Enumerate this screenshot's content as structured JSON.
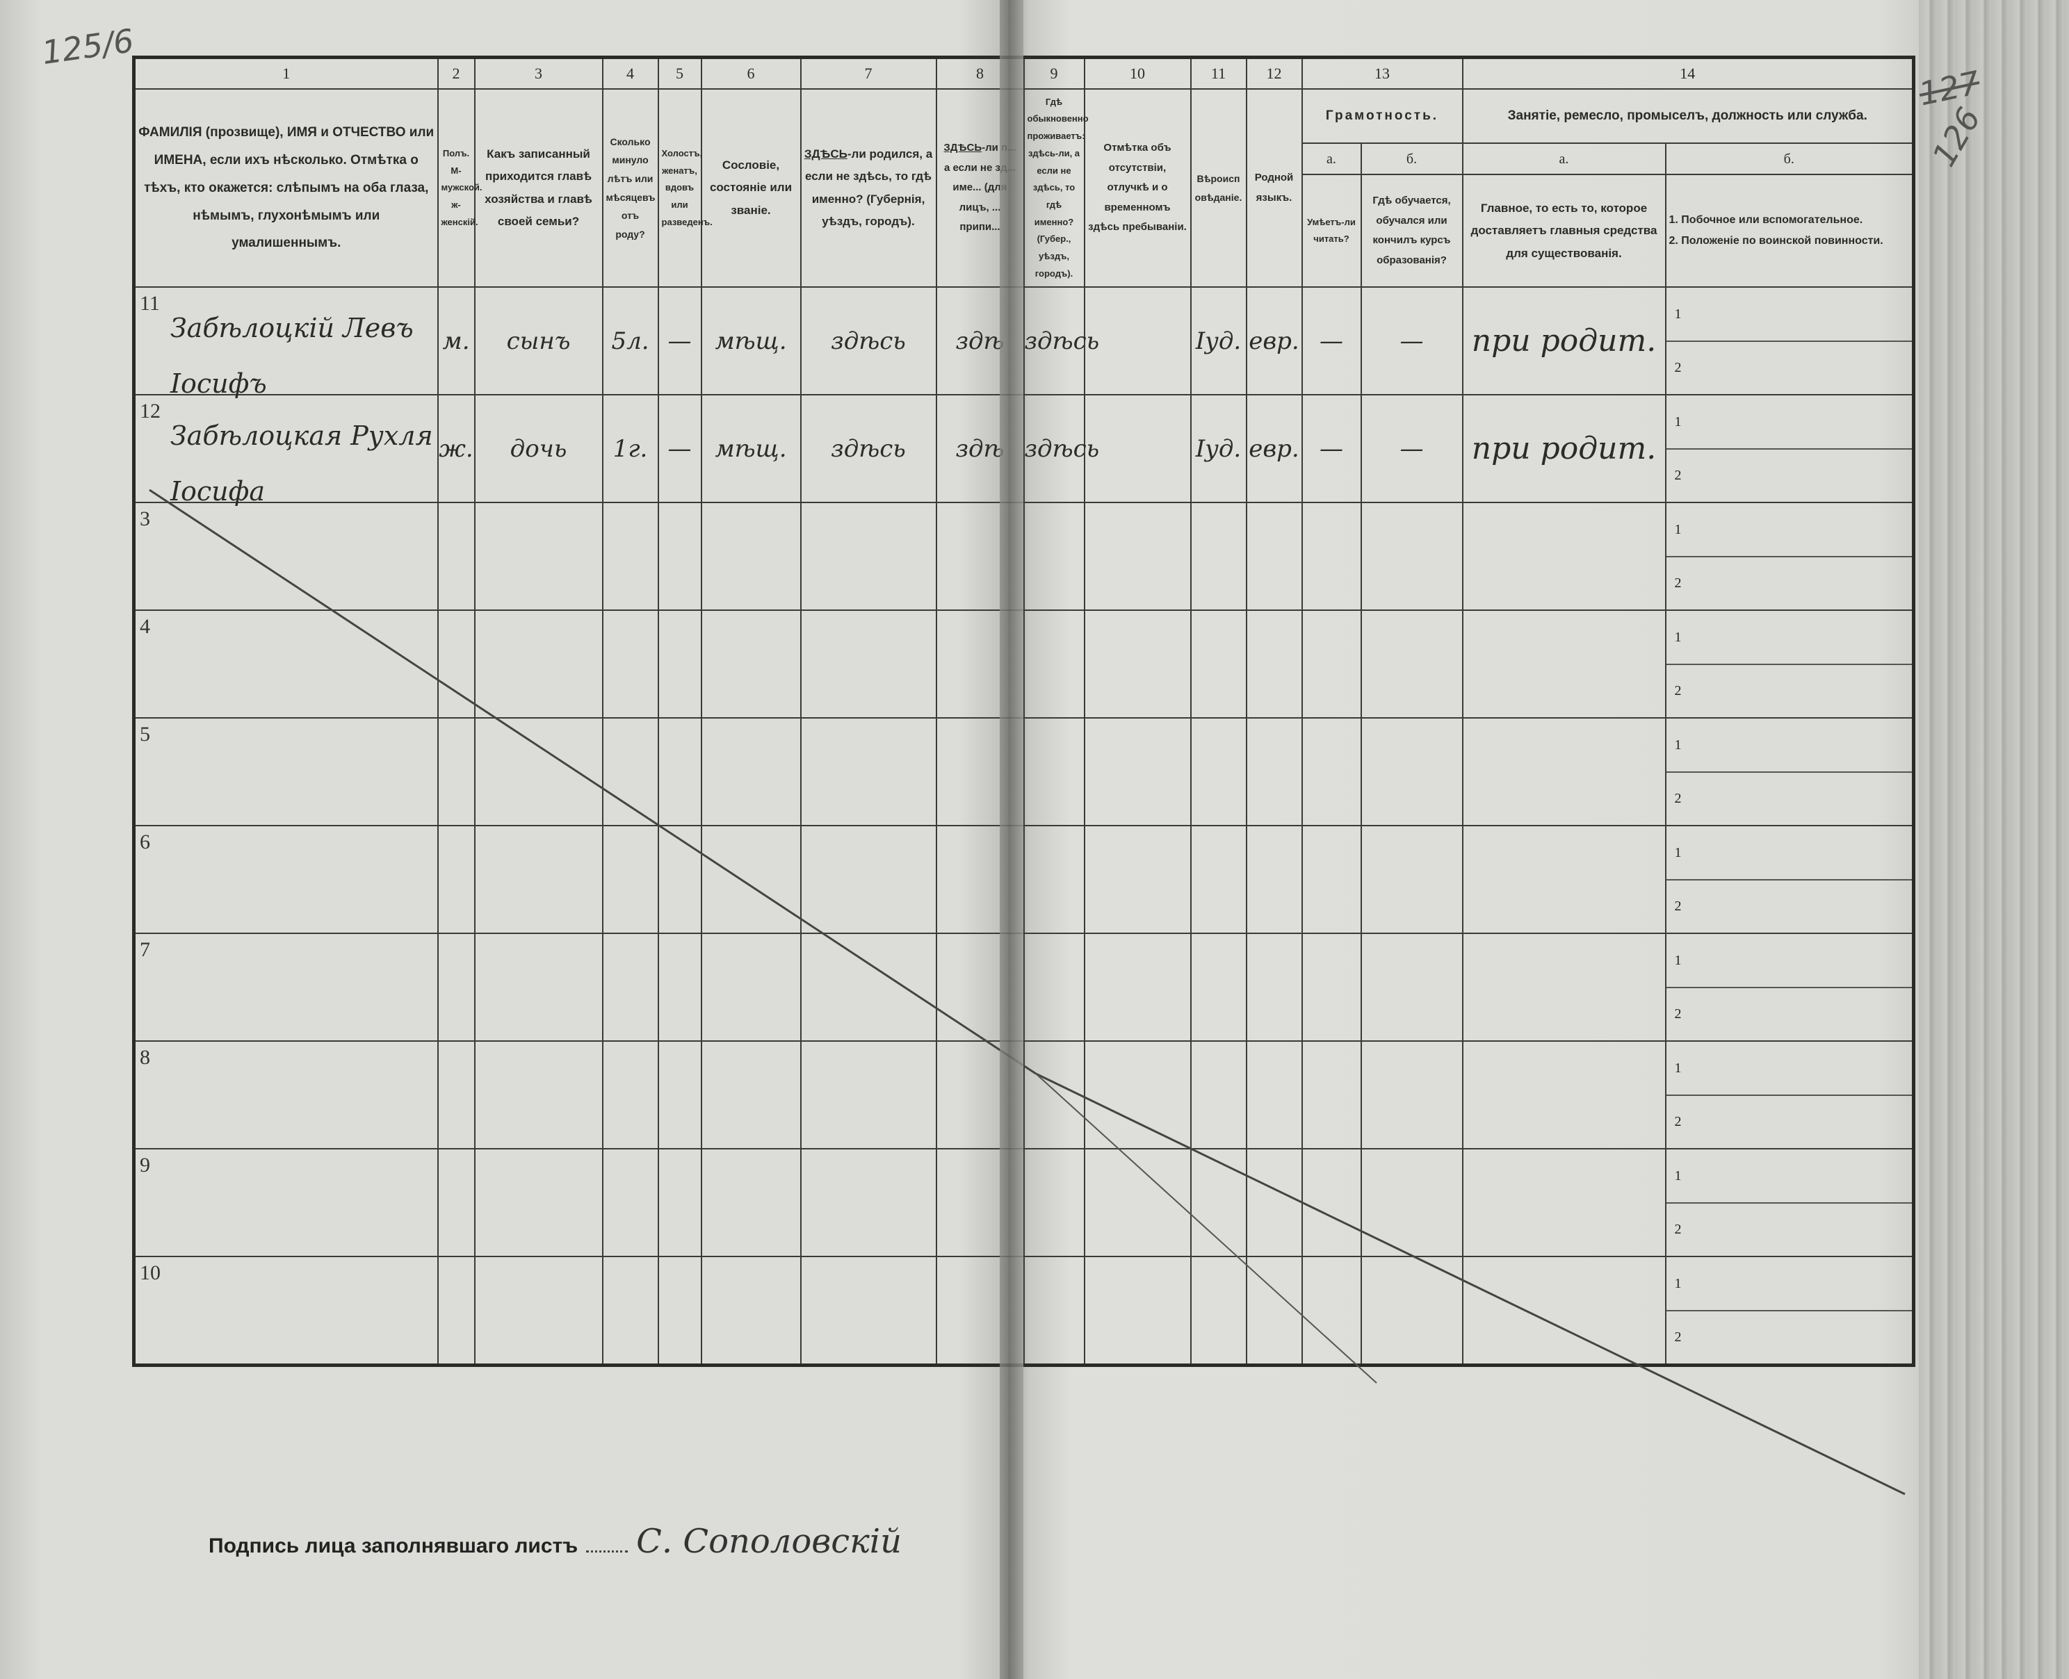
{
  "folio_left": "125/6",
  "folio_right_struck": "127",
  "folio_right": "126",
  "header": {
    "numbers": [
      "1",
      "2",
      "3",
      "4",
      "5",
      "6",
      "7",
      "8",
      "9",
      "10",
      "11",
      "12",
      "13",
      "14"
    ],
    "col1": "ФАМИЛІЯ (прозвище), ИМЯ и ОТЧЕСТВО или ИМЕНА, если ихъ нѣсколько. Отмѣтка о тѣхъ, кто окажется: слѣпымъ на оба глаза, нѣмымъ, глухонѣмымъ или умалишеннымъ.",
    "col2": "Полъ. М-мужской. ж-женскій.",
    "col3": "Какъ записанный приходится главѣ хозяйства и главѣ своей семьи?",
    "col4": "Сколько минуло лѣтъ или мѣсяцевъ отъ роду?",
    "col5": "Холостъ, женатъ, вдовъ или разведенъ.",
    "col6": "Сословіе, состояніе или званіе.",
    "col7_emph": "ЗДѢСЬ",
    "col7": "-ли родился, а если не здѣсь, то гдѣ именно? (Губернія, уѣздъ, городъ).",
    "col8_emph": "ЗДѢСЬ",
    "col8": "-ли п... а если не зд... име... (для лицъ, ... припи...",
    "col9_emph": "здѣсь-ли",
    "col9": "Гдѣ обыкновенно проживаетъ: здѣсь-ли, а если не здѣсь, то гдѣ именно? (Губер., уѣздъ, городъ).",
    "col10": "Отмѣтка объ отсутствіи, отлучкѣ и о временномъ здѣсь пребываніи.",
    "col11": "Вѣроисповѣданіе.",
    "col12": "Родной языкъ.",
    "col13_title": "Грамотность.",
    "col13a_letter": "а.",
    "col13a": "Умѣетъ-ли читать?",
    "col13b_letter": "б.",
    "col13b": "Гдѣ обучается, обучался или кончилъ курсъ образованія?",
    "col14_title": "Занятіе, ремесло, промыселъ, должность или служба.",
    "col14a_letter": "а.",
    "col14a": "Главное, то есть то, которое доставляетъ главныя средства для существованія.",
    "col14b_letter": "б.",
    "col14b_1": "1. Побочное или вспомогательное.",
    "col14b_2": "2. Положеніе по воинской повинности."
  },
  "subrow_labels": [
    "1",
    "2"
  ],
  "rows": [
    {
      "num": "11",
      "name_line1": "Забѣлоцкій Левъ",
      "name_line2": "Іосифъ",
      "sex": "м.",
      "relation": "сынъ",
      "age": "5л.",
      "marital": "—",
      "estate": "мѣщ.",
      "birthplace": "здѣсь",
      "registered": "здѣ",
      "residence": "здѣсь",
      "absence": "",
      "religion": "Іуд.",
      "language": "евр.",
      "literate": "—",
      "education": "—",
      "occupation": "при родит."
    },
    {
      "num": "12",
      "name_line1": "Забѣлоцкая Рухля",
      "name_line2": "Іосифа",
      "sex": "ж.",
      "relation": "дочь",
      "age": "1г.",
      "marital": "—",
      "estate": "мѣщ.",
      "birthplace": "здѣсь",
      "registered": "здѣ",
      "residence": "здѣсь",
      "absence": "",
      "religion": "Іуд.",
      "language": "евр.",
      "literate": "—",
      "education": "—",
      "occupation": "при родит."
    },
    {
      "num": "3"
    },
    {
      "num": "4"
    },
    {
      "num": "5"
    },
    {
      "num": "6"
    },
    {
      "num": "7"
    },
    {
      "num": "8"
    },
    {
      "num": "9"
    },
    {
      "num": "10"
    }
  ],
  "signature": {
    "label": "Подпись лица заполнявшаго листъ",
    "value": "С. Сополовскій"
  }
}
